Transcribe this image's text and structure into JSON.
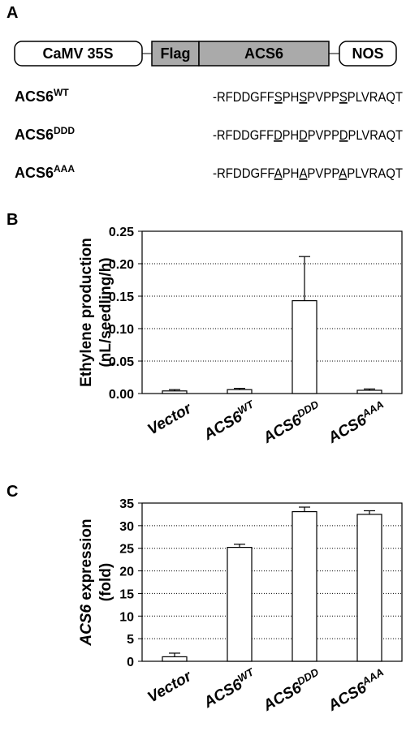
{
  "panel_a": {
    "label": "A",
    "construct": [
      "CaMV 35S",
      "Flag",
      "ACS6",
      "NOS"
    ],
    "sequences": [
      {
        "name": "ACS6",
        "sup": "WT",
        "parts": [
          "-RFDDGFF",
          "S",
          "PH",
          "S",
          "PVPP",
          "S",
          "PLVRAQT"
        ]
      },
      {
        "name": "ACS6",
        "sup": "DDD",
        "parts": [
          "-RFDDGFF",
          "D",
          "PH",
          "D",
          "PVPP",
          "D",
          "PLVRAQT"
        ]
      },
      {
        "name": "ACS6",
        "sup": "AAA",
        "parts": [
          "-RFDDGFF",
          "A",
          "PH",
          "A",
          "PVPP",
          "A",
          "PLVRAQT"
        ]
      }
    ]
  },
  "chart_data": [
    {
      "type": "bar",
      "panel": "B",
      "ylabel_lines": [
        "Ethylene production",
        "(nL/seedling/h)"
      ],
      "categories": [
        "Vector",
        "ACS6",
        "ACS6",
        "ACS6"
      ],
      "category_sup": [
        null,
        "WT",
        "DDD",
        "AAA"
      ],
      "values": [
        0.004,
        0.006,
        0.143,
        0.005
      ],
      "errors": [
        0.002,
        0.002,
        0.068,
        0.002
      ],
      "color": "#ffffff",
      "ylim": [
        0,
        0.25
      ],
      "yticks": [
        {
          "value": 0,
          "label": "0.00"
        },
        {
          "value": 0.05,
          "label": "0.05"
        },
        {
          "value": 0.1,
          "label": "0.10"
        },
        {
          "value": 0.15,
          "label": "0.15"
        },
        {
          "value": 0.2,
          "label": "0.20"
        },
        {
          "value": 0.25,
          "label": "0.25"
        }
      ],
      "grid": true
    },
    {
      "type": "bar",
      "panel": "C",
      "ylabel_italic": "ACS6",
      "ylabel_rest": "expression",
      "ylabel_line2": "(fold)",
      "categories": [
        "Vector",
        "ACS6",
        "ACS6",
        "ACS6"
      ],
      "category_sup": [
        null,
        "WT",
        "DDD",
        "AAA"
      ],
      "values": [
        1.0,
        25.2,
        33.1,
        32.5
      ],
      "errors": [
        0.8,
        0.7,
        1.0,
        0.8
      ],
      "color": "#ffffff",
      "ylim": [
        0,
        35
      ],
      "yticks": [
        0,
        5,
        10,
        15,
        20,
        25,
        30,
        35
      ],
      "grid": true
    }
  ]
}
